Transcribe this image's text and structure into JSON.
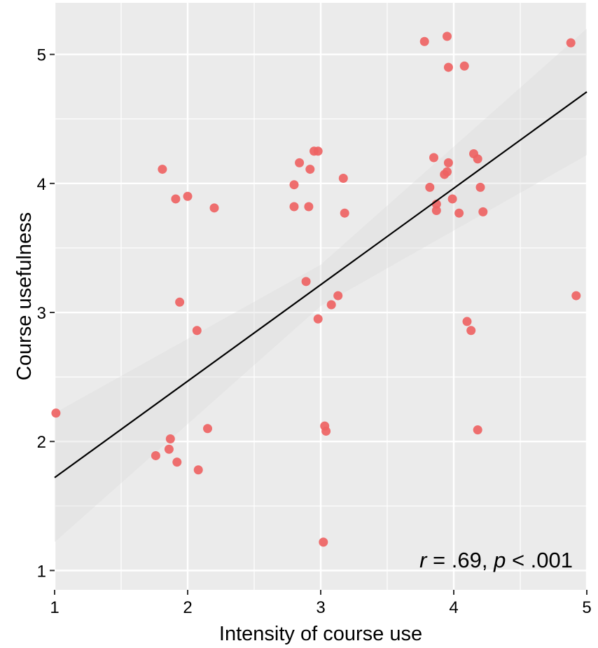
{
  "chart_data": {
    "type": "scatter",
    "title": "",
    "xlabel": "Intensity of course use",
    "ylabel": "Course usefulness",
    "xlim": [
      1,
      5
    ],
    "ylim": [
      0.85,
      5.4
    ],
    "x_ticks": [
      "1",
      "2",
      "3",
      "4",
      "5"
    ],
    "y_ticks": [
      "1",
      "2",
      "3",
      "4",
      "5"
    ],
    "grid": true,
    "point_color": "#EE6363",
    "line_color": "#000000",
    "panel_color": "#EBEBEB",
    "annotation": {
      "r_label": "r",
      "r_value": " = .69, ",
      "p_label": "p",
      "p_value": " < .001"
    },
    "regression": {
      "x": [
        1,
        5
      ],
      "y": [
        1.72,
        4.71
      ]
    },
    "confidence_band": {
      "x": [
        1,
        3,
        5
      ],
      "lower": [
        1.22,
        3.05,
        4.22
      ],
      "upper": [
        2.22,
        3.37,
        5.2
      ]
    },
    "points": [
      {
        "x": 1.01,
        "y": 2.22
      },
      {
        "x": 1.76,
        "y": 1.89
      },
      {
        "x": 1.81,
        "y": 4.11
      },
      {
        "x": 1.86,
        "y": 1.94
      },
      {
        "x": 1.87,
        "y": 2.02
      },
      {
        "x": 1.91,
        "y": 3.88
      },
      {
        "x": 1.92,
        "y": 1.84
      },
      {
        "x": 1.94,
        "y": 3.08
      },
      {
        "x": 2.0,
        "y": 3.9
      },
      {
        "x": 2.07,
        "y": 2.86
      },
      {
        "x": 2.08,
        "y": 1.78
      },
      {
        "x": 2.15,
        "y": 2.1
      },
      {
        "x": 2.2,
        "y": 3.81
      },
      {
        "x": 2.8,
        "y": 3.99
      },
      {
        "x": 2.8,
        "y": 3.82
      },
      {
        "x": 2.84,
        "y": 4.16
      },
      {
        "x": 2.89,
        "y": 3.24
      },
      {
        "x": 2.91,
        "y": 3.82
      },
      {
        "x": 2.92,
        "y": 4.11
      },
      {
        "x": 2.95,
        "y": 4.25
      },
      {
        "x": 2.98,
        "y": 4.25
      },
      {
        "x": 2.98,
        "y": 2.95
      },
      {
        "x": 3.02,
        "y": 1.22
      },
      {
        "x": 3.03,
        "y": 2.12
      },
      {
        "x": 3.04,
        "y": 2.08
      },
      {
        "x": 3.08,
        "y": 3.06
      },
      {
        "x": 3.13,
        "y": 3.13
      },
      {
        "x": 3.17,
        "y": 4.04
      },
      {
        "x": 3.18,
        "y": 3.77
      },
      {
        "x": 3.78,
        "y": 5.1
      },
      {
        "x": 3.82,
        "y": 3.97
      },
      {
        "x": 3.85,
        "y": 4.2
      },
      {
        "x": 3.87,
        "y": 3.79
      },
      {
        "x": 3.87,
        "y": 3.84
      },
      {
        "x": 3.93,
        "y": 4.07
      },
      {
        "x": 3.95,
        "y": 5.14
      },
      {
        "x": 3.95,
        "y": 4.09
      },
      {
        "x": 3.96,
        "y": 4.9
      },
      {
        "x": 3.96,
        "y": 4.16
      },
      {
        "x": 3.99,
        "y": 3.88
      },
      {
        "x": 4.04,
        "y": 3.77
      },
      {
        "x": 4.08,
        "y": 4.91
      },
      {
        "x": 4.1,
        "y": 2.93
      },
      {
        "x": 4.13,
        "y": 2.86
      },
      {
        "x": 4.15,
        "y": 4.23
      },
      {
        "x": 4.18,
        "y": 4.19
      },
      {
        "x": 4.18,
        "y": 2.09
      },
      {
        "x": 4.2,
        "y": 3.97
      },
      {
        "x": 4.22,
        "y": 3.78
      },
      {
        "x": 4.88,
        "y": 5.09
      },
      {
        "x": 4.92,
        "y": 3.13
      }
    ]
  }
}
